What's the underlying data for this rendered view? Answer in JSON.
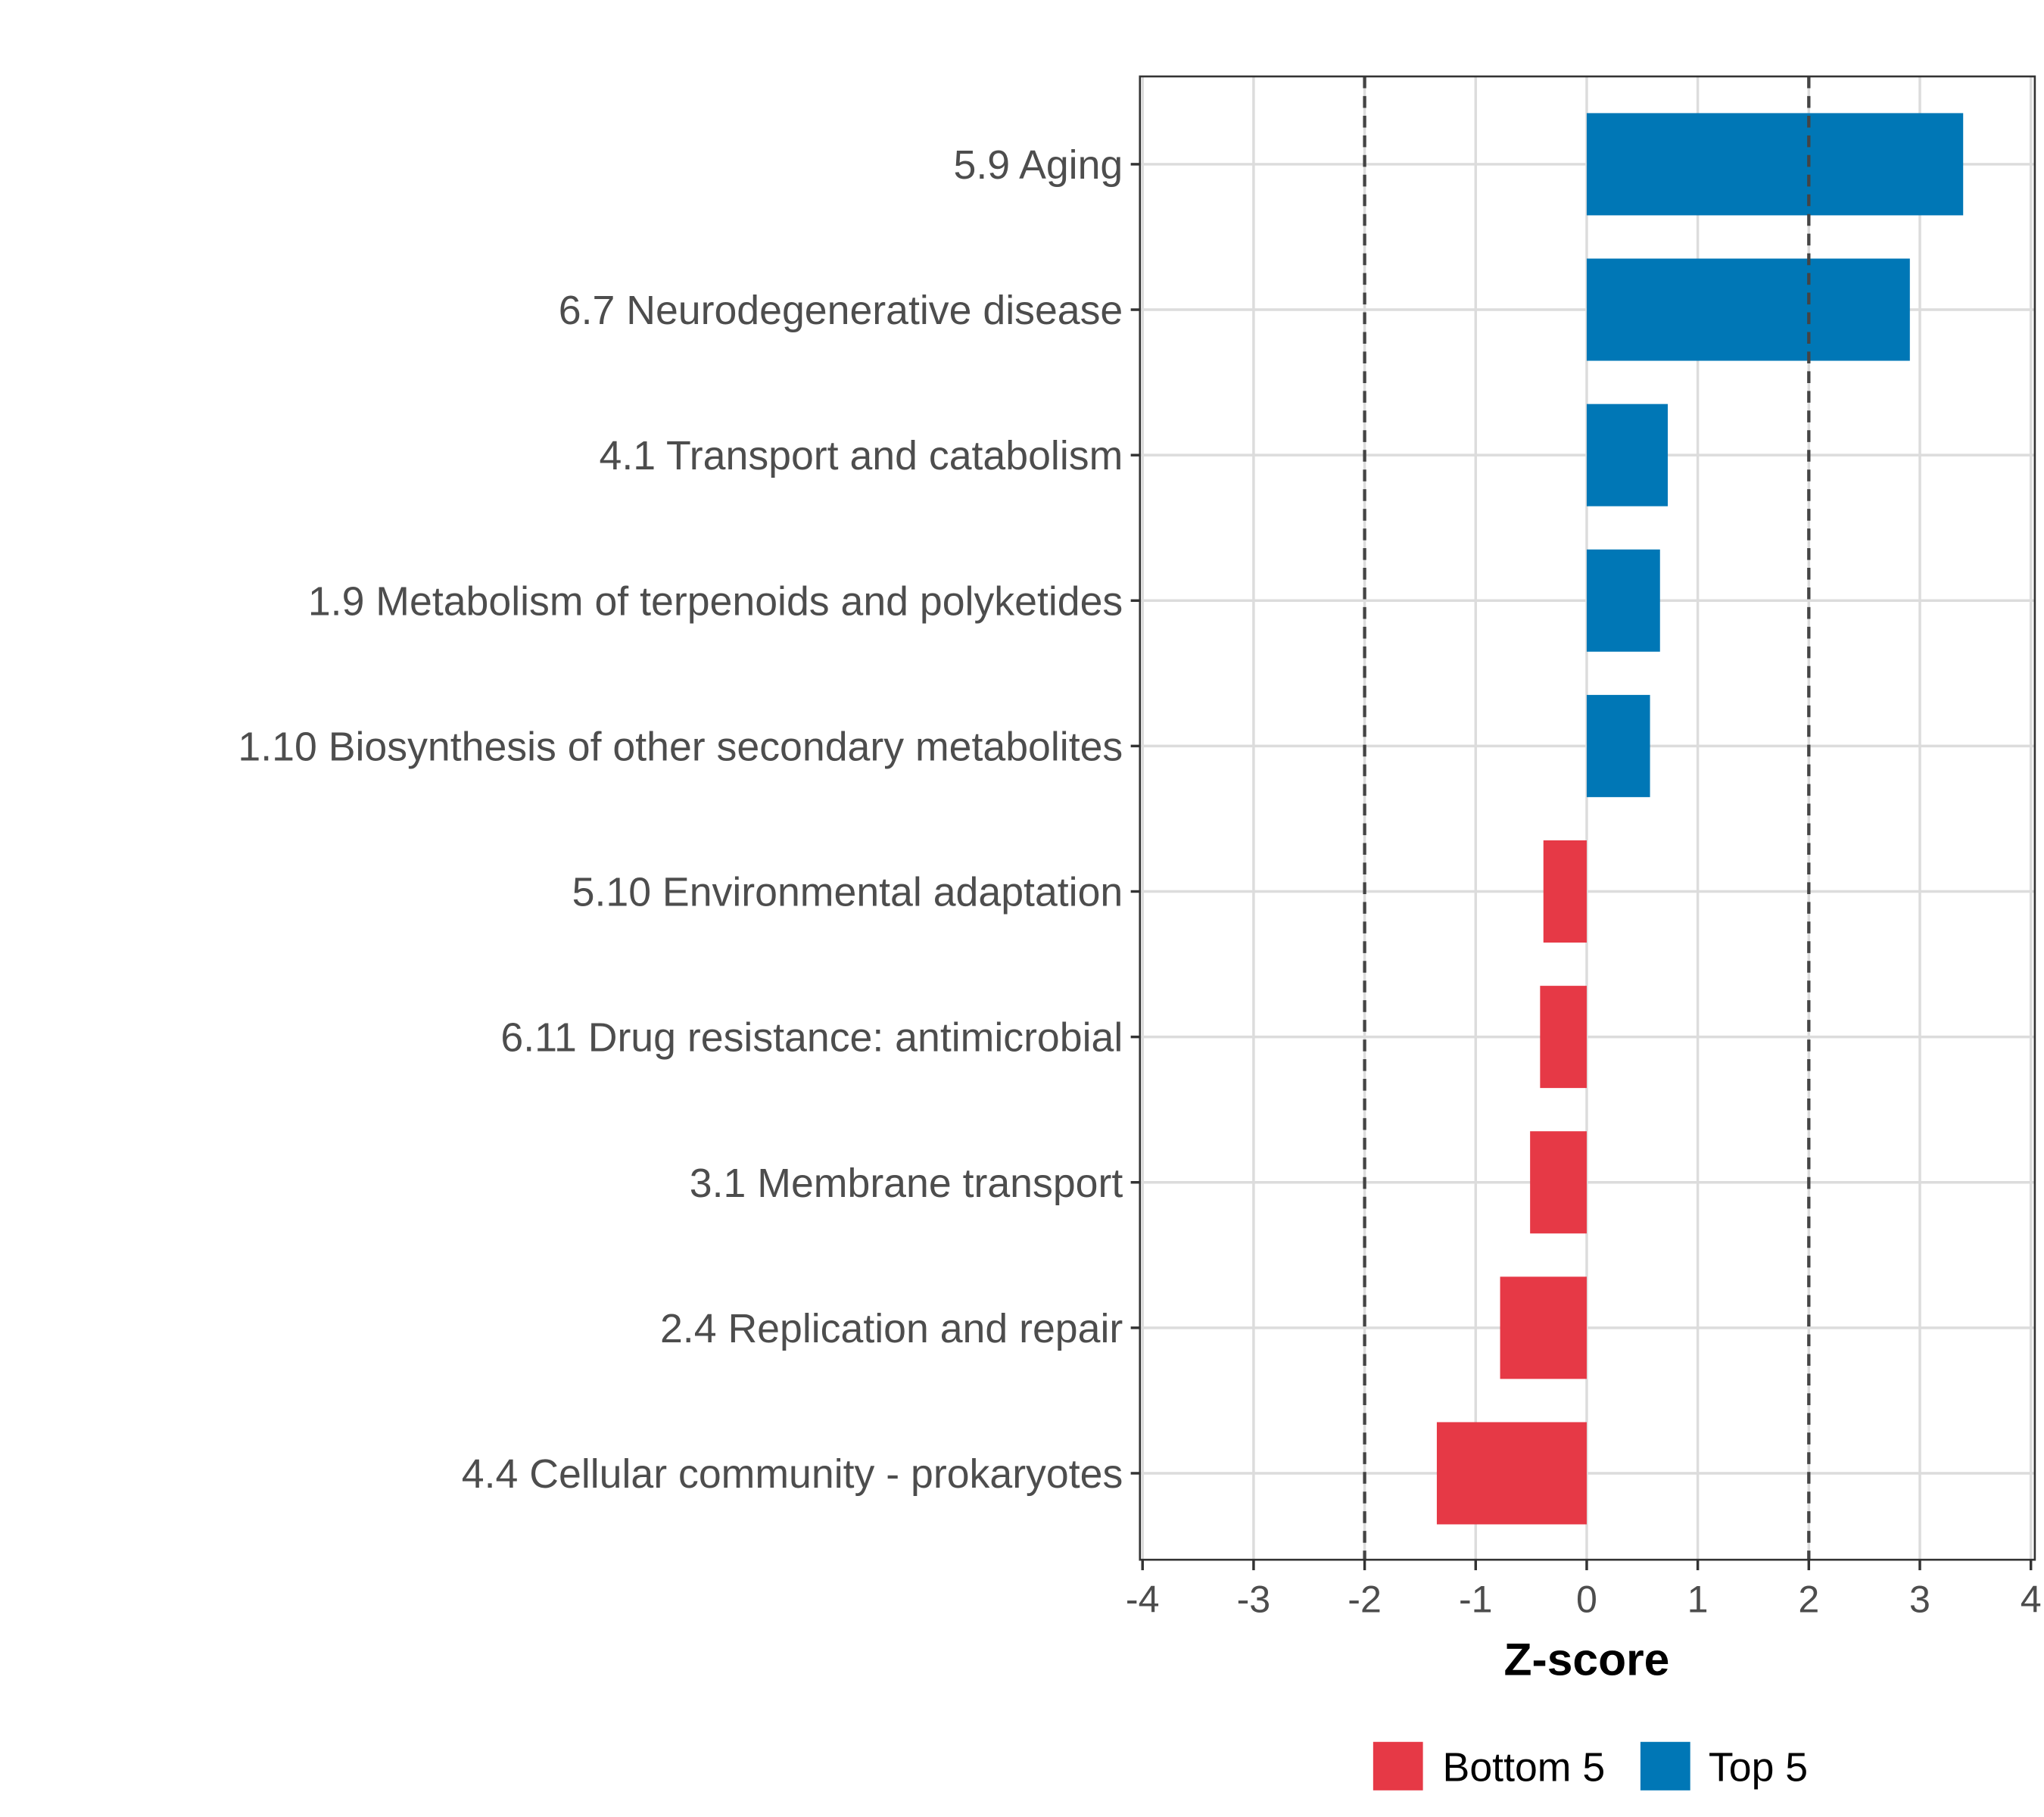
{
  "chart_data": {
    "type": "bar",
    "orientation": "horizontal",
    "title": "",
    "xlabel": "Z-score",
    "ylabel": "",
    "xlim": [
      -4,
      4
    ],
    "xticks": [
      "-4",
      "-3",
      "-2",
      "-1",
      "0",
      "1",
      "2",
      "3",
      "4"
    ],
    "reference_lines": [
      -2,
      2
    ],
    "grid": true,
    "categories": [
      "5.9 Aging",
      "6.7 Neurodegenerative disease",
      "4.1 Transport and catabolism",
      "1.9 Metabolism of terpenoids and polyketides",
      "1.10 Biosynthesis of other secondary metabolites",
      "5.10 Environmental adaptation",
      "6.11 Drug resistance: antimicrobial",
      "3.1 Membrane transport",
      "2.4 Replication and repair",
      "4.4 Cellular community - prokaryotes"
    ],
    "values": [
      3.39,
      2.91,
      0.73,
      0.66,
      0.57,
      -0.39,
      -0.42,
      -0.51,
      -0.78,
      -1.35
    ],
    "groups": [
      "Top 5",
      "Top 5",
      "Top 5",
      "Top 5",
      "Top 5",
      "Bottom 5",
      "Bottom 5",
      "Bottom 5",
      "Bottom 5",
      "Bottom 5"
    ],
    "legend": {
      "position": "bottom",
      "entries": [
        {
          "label": "Bottom 5",
          "color": "#E63946"
        },
        {
          "label": "Top 5",
          "color": "#0077B6"
        }
      ]
    }
  }
}
